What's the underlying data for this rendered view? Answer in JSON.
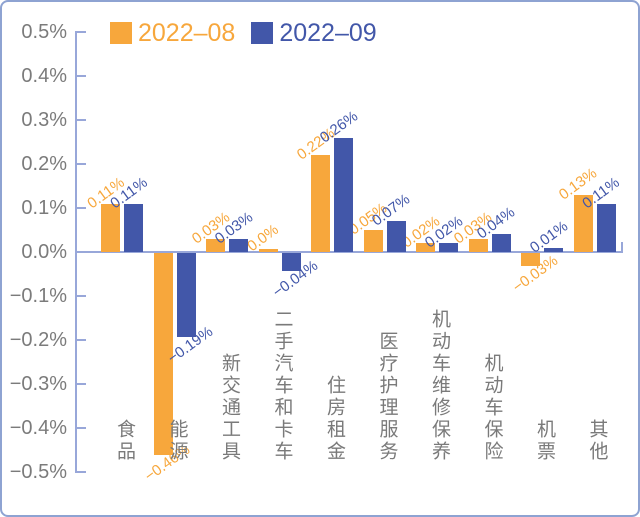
{
  "colors": {
    "series_2022_08": "#f7a73c",
    "series_2022_09": "#4257a9",
    "axis": "#98a7d9",
    "frame_border": "#8ea3d2",
    "tick_text": "#7b7b7b",
    "category_text": "#7a7a7a",
    "background": "#ffffff"
  },
  "chart_data": {
    "type": "bar",
    "title": "",
    "xlabel": "",
    "ylabel": "",
    "ylim": [
      -0.5,
      0.5
    ],
    "grid": false,
    "legend_position": "top",
    "yticks": [
      "0.5%",
      "0.4%",
      "0.3%",
      "0.2%",
      "0.1%",
      "0.0%",
      "−0.1%",
      "−0.2%",
      "−0.3%",
      "−0.4%",
      "−0.5%"
    ],
    "categories": [
      "食品",
      "能源",
      "新交通工具",
      "二手汽车和卡车",
      "住房租金",
      "医疗护理服务",
      "机动车维修保养",
      "机动车保险",
      "机票",
      "其他"
    ],
    "series": [
      {
        "name": "2022–08",
        "color": "#f7a73c",
        "values": [
          0.11,
          -0.46,
          0.03,
          0.0,
          0.22,
          0.05,
          0.02,
          0.03,
          -0.03,
          0.13
        ],
        "labels": [
          "0.11%",
          "−0.46%",
          "0.03%",
          "0.0%",
          "0.22%",
          "0.05%",
          "0.02%",
          "0.03%",
          "−0.03%",
          "0.13%"
        ]
      },
      {
        "name": "2022–09",
        "color": "#4257a9",
        "values": [
          0.11,
          -0.19,
          0.03,
          -0.04,
          0.26,
          0.07,
          0.02,
          0.04,
          0.01,
          0.11
        ],
        "labels": [
          "0.11%",
          "−0.19%",
          "0.03%",
          "−0.04%",
          "0.26%",
          "0.07%",
          "0.02%",
          "0.04%",
          "0.01%",
          "0.11%"
        ]
      }
    ]
  }
}
